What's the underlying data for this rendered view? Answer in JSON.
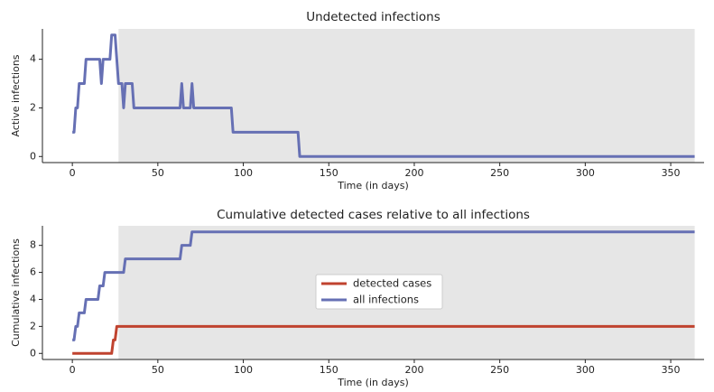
{
  "chart_data": [
    {
      "type": "line",
      "title": "Undetected infections",
      "x_label": "Time (in days)",
      "y_label": "Active infections",
      "x": [
        0,
        1,
        2,
        3,
        4,
        7,
        8,
        16,
        17,
        18,
        22,
        23,
        25,
        26,
        27,
        29,
        30,
        31,
        35,
        36,
        63,
        64,
        65,
        69,
        70,
        71,
        93,
        94,
        132,
        133,
        364
      ],
      "values": [
        1,
        1,
        2,
        2,
        3,
        3,
        4,
        4,
        3,
        4,
        4,
        5,
        5,
        4,
        3,
        3,
        2,
        3,
        3,
        2,
        2,
        3,
        2,
        2,
        3,
        2,
        2,
        1,
        1,
        0,
        0
      ],
      "color": "#6670b4",
      "shaded_region": [
        27,
        364
      ],
      "shade_color": "#e6e6e6",
      "xlim": [
        -17.5,
        369.5
      ],
      "xticks": [
        0,
        50,
        100,
        150,
        200,
        250,
        300,
        350
      ],
      "ylim": [
        -0.25,
        5.25
      ],
      "yticks": [
        0,
        2,
        4
      ]
    },
    {
      "type": "line",
      "title": "Cumulative detected cases relative to all infections",
      "x_label": "Time (in days)",
      "y_label": "Cumulative infections",
      "series": [
        {
          "name": "detected cases",
          "color": "#c0432f",
          "x": [
            0,
            23,
            24,
            25,
            26,
            364
          ],
          "values": [
            0,
            0,
            1,
            1,
            2,
            2
          ]
        },
        {
          "name": "all infections",
          "color": "#6670b4",
          "x": [
            0,
            1,
            2,
            3,
            4,
            7,
            8,
            15,
            16,
            18,
            19,
            30,
            31,
            63,
            64,
            69,
            70,
            364
          ],
          "values": [
            1,
            1,
            2,
            2,
            3,
            3,
            4,
            4,
            5,
            5,
            6,
            6,
            7,
            7,
            8,
            8,
            9,
            9
          ]
        }
      ],
      "legend": "center",
      "shaded_region": [
        27,
        364
      ],
      "shade_color": "#e6e6e6",
      "xlim": [
        -17.5,
        369.5
      ],
      "xticks": [
        0,
        50,
        100,
        150,
        200,
        250,
        300,
        350
      ],
      "ylim": [
        -0.45,
        9.45
      ],
      "yticks": [
        0,
        2,
        4,
        6,
        8
      ]
    }
  ]
}
